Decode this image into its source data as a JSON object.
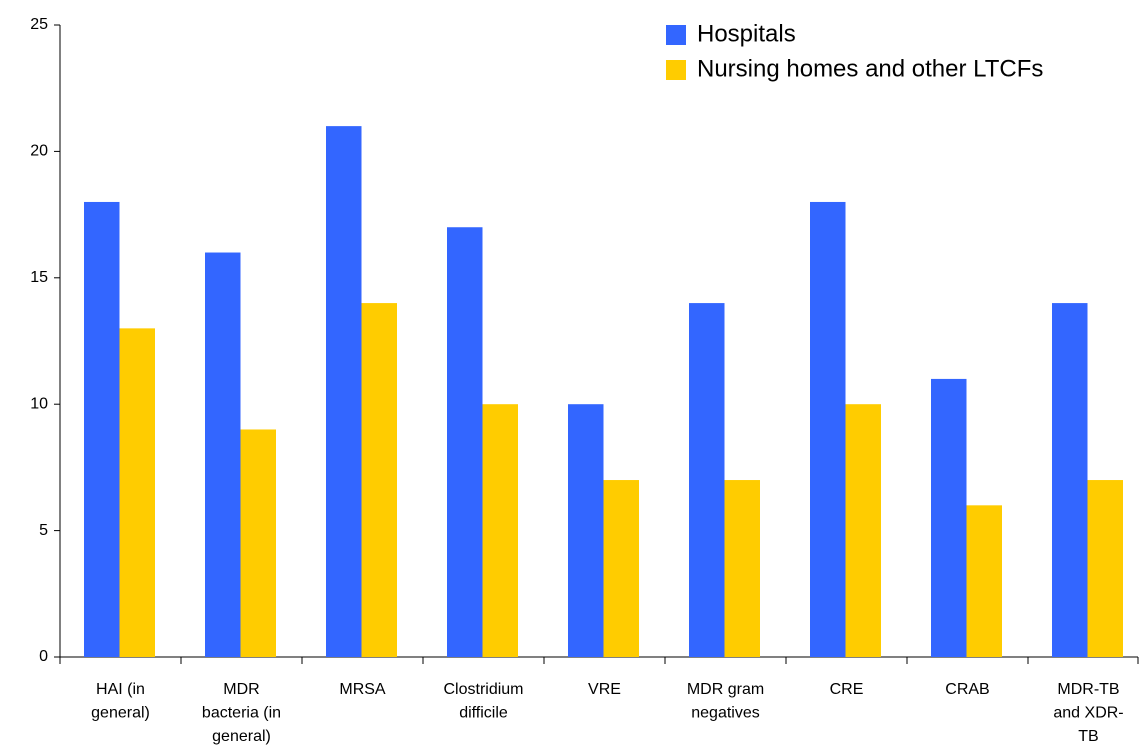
{
  "chart_data": {
    "type": "bar",
    "categories": [
      [
        "HAI (in",
        "general)"
      ],
      [
        "MDR",
        "bacteria (in",
        "general)"
      ],
      [
        "MRSA"
      ],
      [
        "Clostridium",
        "difficile"
      ],
      [
        "VRE"
      ],
      [
        "MDR gram",
        "negatives"
      ],
      [
        "CRE"
      ],
      [
        "CRAB"
      ],
      [
        "MDR-TB",
        "and XDR-",
        "TB"
      ]
    ],
    "series": [
      {
        "name": "Hospitals",
        "color": "#3366ff",
        "values": [
          18,
          16,
          21,
          17,
          10,
          14,
          18,
          11,
          14
        ]
      },
      {
        "name": "Nursing homes and other LTCFs",
        "color": "#ffcc00",
        "values": [
          13,
          9,
          14,
          10,
          7,
          7,
          10,
          6,
          7
        ]
      }
    ],
    "ylim": [
      0,
      25
    ],
    "yticks": [
      0,
      5,
      10,
      15,
      20,
      25
    ],
    "grid": false,
    "legend": "top-right"
  }
}
